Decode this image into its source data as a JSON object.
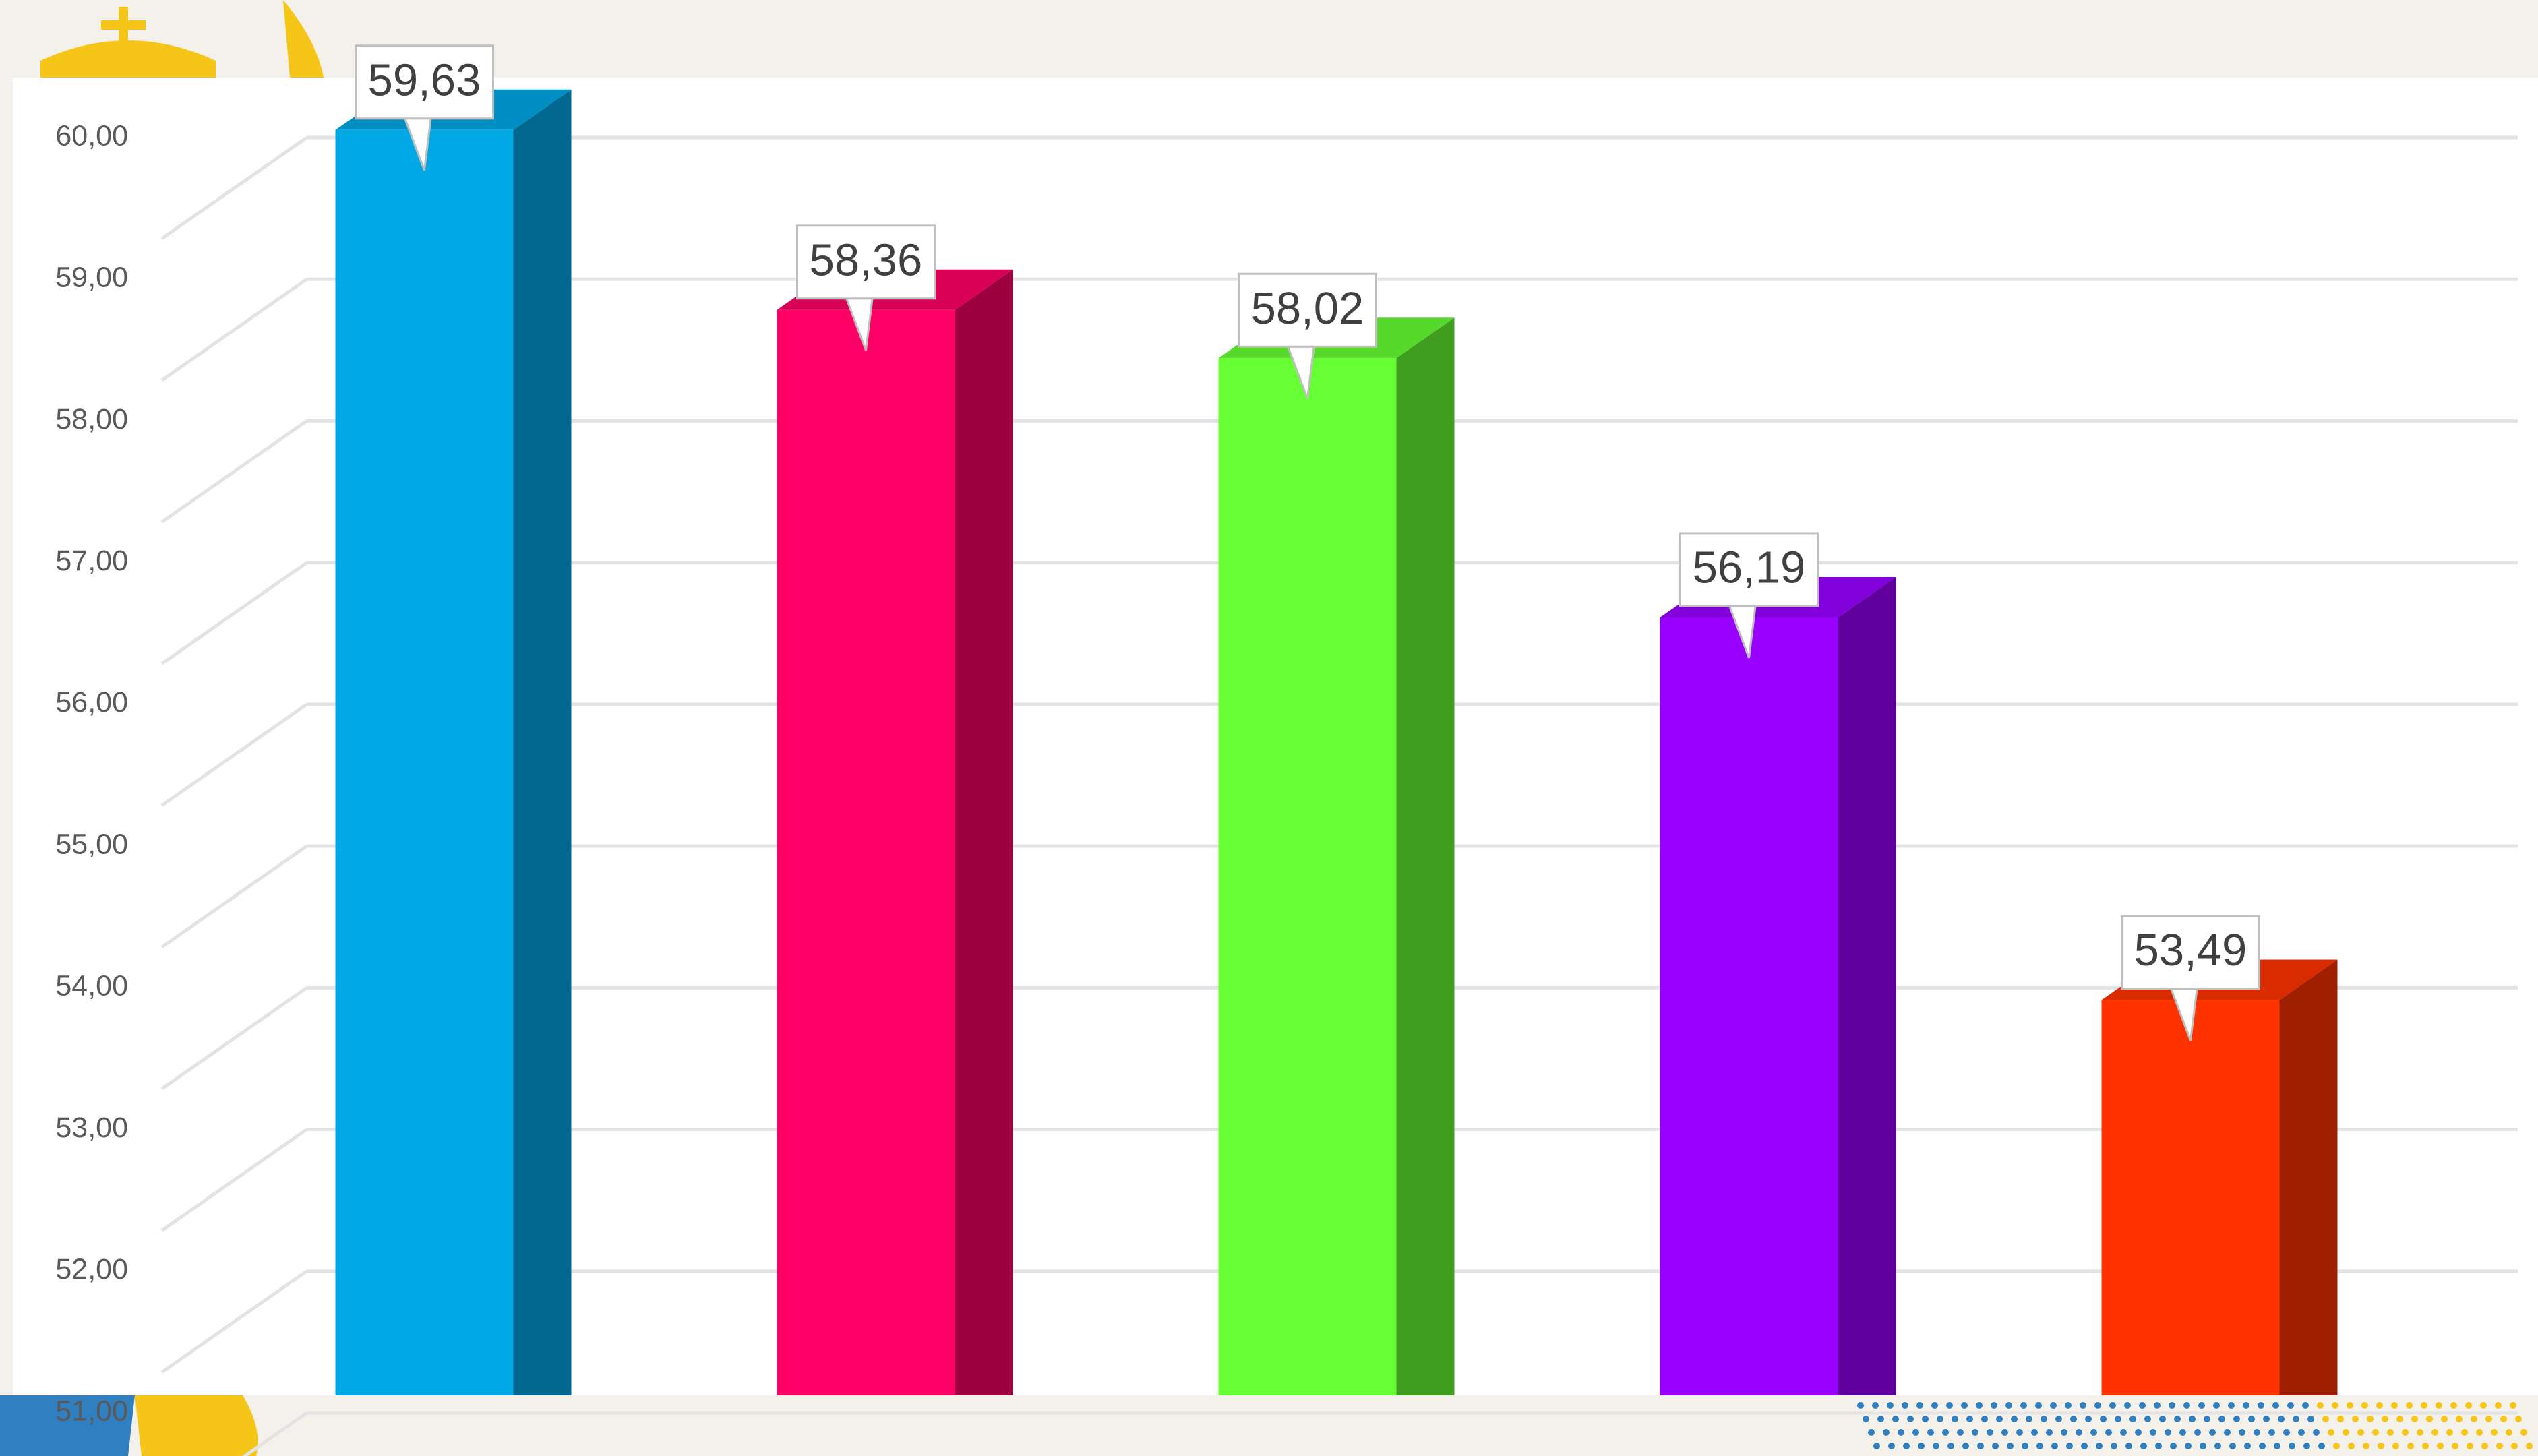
{
  "chart_data": {
    "type": "bar3d",
    "categories": [
      null,
      null,
      null,
      null,
      null
    ],
    "values": [
      59.63,
      58.36,
      58.02,
      56.19,
      53.49
    ],
    "value_labels": [
      "59,63",
      "58,36",
      "58,02",
      "56,19",
      "53,49"
    ],
    "colors": [
      "#00a8e6",
      "#ff0066",
      "#66ff33",
      "#9900ff",
      "#ff3300"
    ],
    "ylim": [
      51,
      60
    ],
    "yticks": [
      {
        "value": 51,
        "label": "51,00"
      },
      {
        "value": 52,
        "label": "52,00"
      },
      {
        "value": 53,
        "label": "53,00"
      },
      {
        "value": 54,
        "label": "54,00"
      },
      {
        "value": 55,
        "label": "55,00"
      },
      {
        "value": 56,
        "label": "56,00"
      },
      {
        "value": 57,
        "label": "57,00"
      },
      {
        "value": 58,
        "label": "58,00"
      },
      {
        "value": 59,
        "label": "59,00"
      },
      {
        "value": 60,
        "label": "60,00"
      }
    ],
    "grid": true
  }
}
